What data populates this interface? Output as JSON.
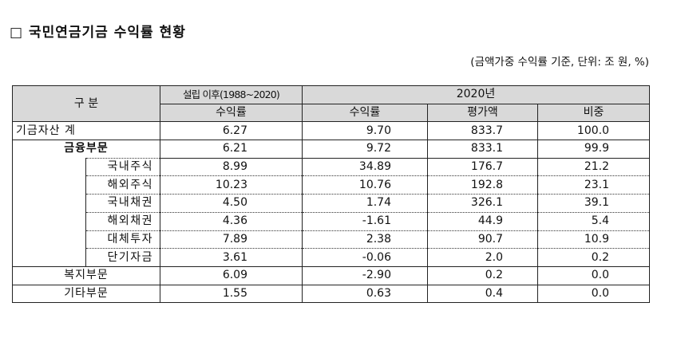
{
  "title": "□ 국민연금기금 수익률 현황",
  "unit_note": "(금액가중 수익률 기준, 단위: 조 원, %)",
  "header": {
    "category": "구 분",
    "since_inception": "설립 이후(1988~2020)",
    "year": "2020년",
    "return_rate": "수익률",
    "return_rate_2020": "수익률",
    "valuation": "평가액",
    "weight": "비중"
  },
  "rows": [
    {
      "label": "기금자산 계",
      "since": "6.27",
      "ret": "9.70",
      "val": "833.7",
      "wt": "100.0"
    },
    {
      "label": "금융부문",
      "since": "6.21",
      "ret": "9.72",
      "val": "833.1",
      "wt": "99.9"
    },
    {
      "label": "국내주식",
      "since": "8.99",
      "ret": "34.89",
      "val": "176.7",
      "wt": "21.2"
    },
    {
      "label": "해외주식",
      "since": "10.23",
      "ret": "10.76",
      "val": "192.8",
      "wt": "23.1"
    },
    {
      "label": "국내채권",
      "since": "4.50",
      "ret": "1.74",
      "val": "326.1",
      "wt": "39.1"
    },
    {
      "label": "해외채권",
      "since": "4.36",
      "ret": "-1.61",
      "val": "44.9",
      "wt": "5.4"
    },
    {
      "label": "대체투자",
      "since": "7.89",
      "ret": "2.38",
      "val": "90.7",
      "wt": "10.9"
    },
    {
      "label": "단기자금",
      "since": "3.61",
      "ret": "-0.06",
      "val": "2.0",
      "wt": "0.2"
    },
    {
      "label": "복지부문",
      "since": "6.09",
      "ret": "-2.90",
      "val": "0.2",
      "wt": "0.0"
    },
    {
      "label": "기타부문",
      "since": "1.55",
      "ret": "0.63",
      "val": "0.4",
      "wt": "0.0"
    }
  ],
  "colors": {
    "header_bg": "#d9d9d9",
    "border": "#222222"
  }
}
